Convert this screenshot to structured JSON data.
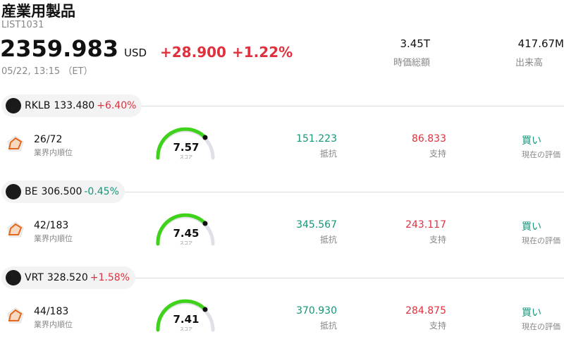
{
  "header": {
    "title": "産業用製品",
    "code": "LIST1031",
    "price": "2359.983",
    "currency": "USD",
    "change": "+28.900",
    "change_pct": "+1.22%",
    "time": "05/22, 13:15 （ET）",
    "market_cap": "3.45T",
    "market_cap_label": "時価総額",
    "volume": "417.67M",
    "volume_label": "出来高"
  },
  "stocks": [
    {
      "ticker": "RKLB",
      "price": "133.480",
      "change": "+6.40%",
      "direction": "up",
      "rank": "26/72",
      "rank_label": "業界内順位",
      "score": "7.57",
      "score_label": "スコア",
      "resistance": "151.223",
      "resistance_label": "抵抗",
      "support": "86.833",
      "support_label": "支持",
      "rating": "買い",
      "rating_label": "現在の評価"
    },
    {
      "ticker": "BE",
      "price": "306.500",
      "change": "-0.45%",
      "direction": "down",
      "rank": "42/183",
      "rank_label": "業界内順位",
      "score": "7.45",
      "score_label": "スコア",
      "resistance": "345.567",
      "resistance_label": "抵抗",
      "support": "243.117",
      "support_label": "支持",
      "rating": "買い",
      "rating_label": "現在の評価"
    },
    {
      "ticker": "VRT",
      "price": "328.520",
      "change": "+1.58%",
      "direction": "up",
      "rank": "44/183",
      "rank_label": "業界内順位",
      "score": "7.41",
      "score_label": "スコア",
      "resistance": "370.930",
      "resistance_label": "抵抗",
      "support": "284.875",
      "support_label": "支持",
      "rating": "買い",
      "rating_label": "現在の評価"
    }
  ]
}
